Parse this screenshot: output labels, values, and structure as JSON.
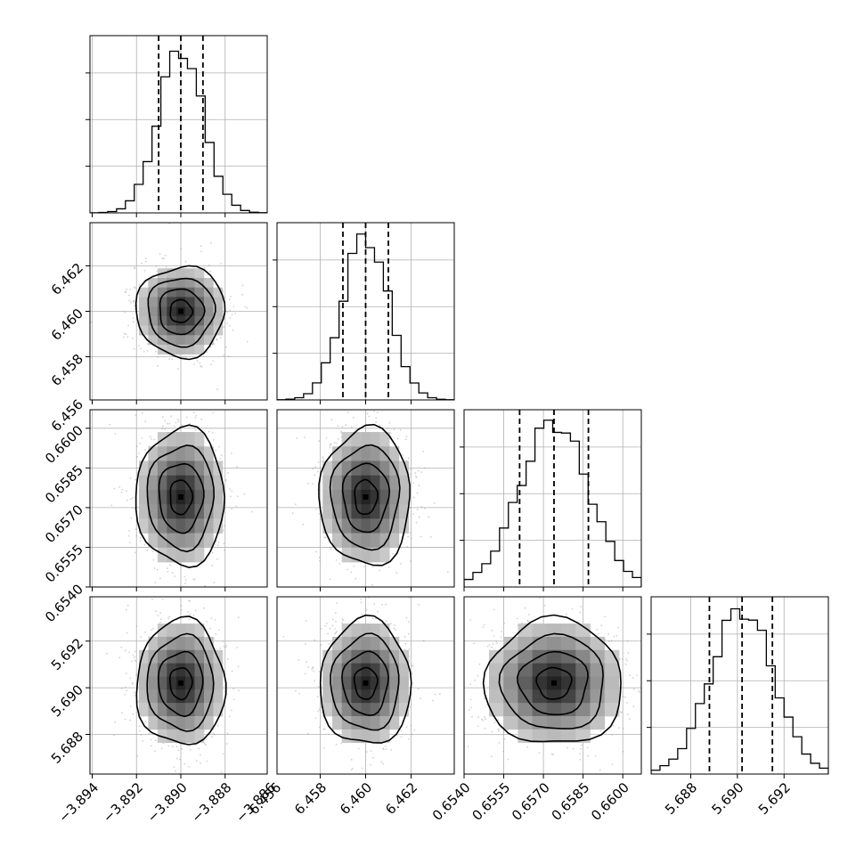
{
  "chart_data": {
    "type": "corner",
    "params": [
      {
        "ticks": [
          -3.894,
          -3.892,
          -3.89,
          -3.888,
          -3.886
        ],
        "tick_labels": [
          "−3.894",
          "−3.892",
          "−3.890",
          "−3.888",
          "−3.886"
        ],
        "range": [
          -3.8941,
          -3.8861
        ],
        "median": -3.89,
        "q16": -3.891,
        "q84": -3.889,
        "sigma": 0.001
      },
      {
        "ticks": [
          6.456,
          6.458,
          6.46,
          6.462
        ],
        "tick_labels": [
          "6.456",
          "6.458",
          "6.460",
          "6.462"
        ],
        "range": [
          6.4561,
          6.4639
        ],
        "median": 6.46,
        "q16": 6.459,
        "q84": 6.461,
        "sigma": 0.001
      },
      {
        "ticks": [
          0.654,
          0.6555,
          0.657,
          0.6585,
          0.66
        ],
        "tick_labels": [
          "0.6540",
          "0.6555",
          "0.6570",
          "0.6585",
          "0.6600"
        ],
        "range": [
          0.654,
          0.6607
        ],
        "median": 0.6574,
        "q16": 0.6561,
        "q84": 0.6587,
        "sigma": 0.0013
      },
      {
        "ticks": [
          5.688,
          5.69,
          5.692
        ],
        "tick_labels": [
          "5.688",
          "5.690",
          "5.692"
        ],
        "range": [
          5.6863,
          5.6939
        ],
        "median": 5.6902,
        "q16": 5.6888,
        "q84": 5.6915,
        "sigma": 0.00135
      }
    ],
    "diag_hist_peak": 0.38,
    "contour_levels_sigma": [
      0.5,
      1.0,
      1.5,
      2.0
    ],
    "grid": true,
    "colors": {
      "hist": "#000000",
      "contour": "#000000",
      "grid": "#b0b0b0",
      "points": "#9a9a9a"
    }
  }
}
